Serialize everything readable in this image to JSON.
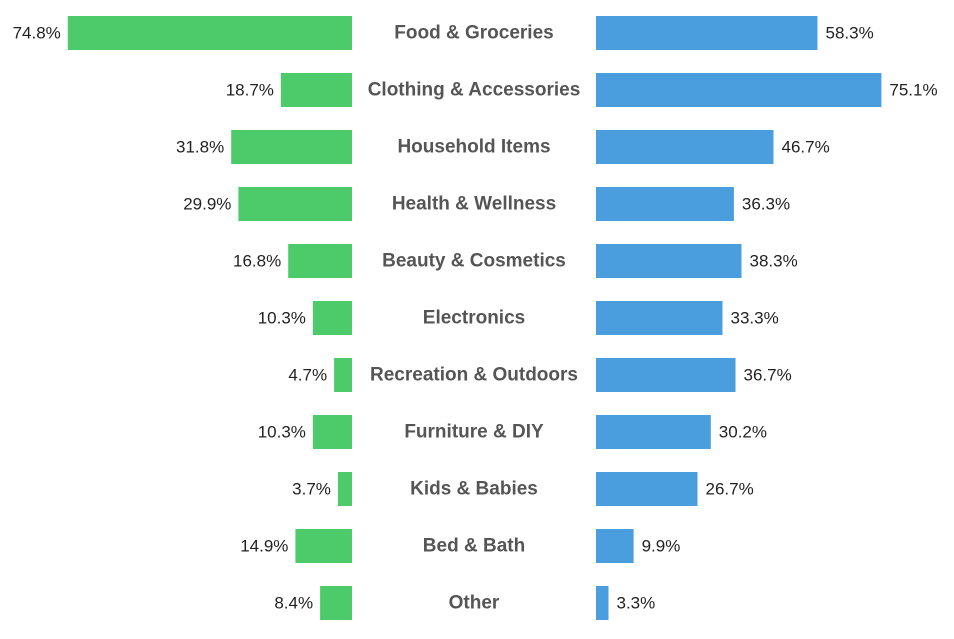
{
  "chart_data": {
    "type": "bar",
    "orientation": "horizontal",
    "layout": "diverging-butterfly",
    "categories": [
      "Food & Groceries",
      "Clothing & Accessories",
      "Household Items",
      "Health & Wellness",
      "Beauty & Cosmetics",
      "Electronics",
      "Recreation & Outdoors",
      "Furniture & DIY",
      "Kids & Babies",
      "Bed & Bath",
      "Other"
    ],
    "series": [
      {
        "side": "left",
        "color": "#4dcb6b",
        "values": [
          74.8,
          18.7,
          31.8,
          29.9,
          16.8,
          10.3,
          4.7,
          10.3,
          3.7,
          14.9,
          8.4
        ],
        "labels": [
          "74.8%",
          "18.7%",
          "31.8%",
          "29.9%",
          "16.8%",
          "10.3%",
          "4.7%",
          "10.3%",
          "3.7%",
          "14.9%",
          "8.4%"
        ]
      },
      {
        "side": "right",
        "color": "#4a9ede",
        "values": [
          58.3,
          75.1,
          46.7,
          36.3,
          38.3,
          33.3,
          36.7,
          30.2,
          26.7,
          9.9,
          3.3
        ],
        "labels": [
          "58.3%",
          "75.1%",
          "46.7%",
          "36.3%",
          "38.3%",
          "33.3%",
          "36.7%",
          "30.2%",
          "26.7%",
          "9.9%",
          "3.3%"
        ]
      }
    ],
    "unit": "%",
    "grid": false,
    "legend": "none",
    "title": "",
    "xlabel": "",
    "ylabel": ""
  }
}
